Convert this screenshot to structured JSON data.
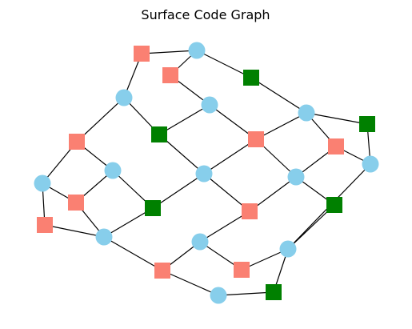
{
  "title": "Surface Code Graph",
  "colors": {
    "data_qubit": "#87ceeb",
    "x_stabilizer": "#fa8072",
    "z_stabilizer": "#008000",
    "edge": "#000000",
    "background": "#ffffff"
  },
  "node_types": {
    "data": "circle",
    "x": "square",
    "z": "square"
  },
  "nodes": {
    "d1": "data",
    "d2": "data",
    "d3": "data",
    "d4": "data",
    "d5": "data",
    "d6": "data",
    "d7": "data",
    "d8": "data",
    "d9": "data",
    "d10": "data",
    "d11": "data",
    "d12": "data",
    "d13": "data",
    "d14": "data",
    "x1": "x",
    "x2": "x",
    "x3": "x",
    "x4": "x",
    "x5": "x",
    "x6": "x",
    "x7": "x",
    "x8": "x",
    "x9": "x",
    "x10": "x",
    "z1": "z",
    "z2": "z",
    "z3": "z",
    "z4": "z",
    "z5": "z",
    "z6": "z"
  },
  "edges": [
    [
      "x1",
      "d1"
    ],
    [
      "x1",
      "d2"
    ],
    [
      "x2",
      "d1"
    ],
    [
      "x2",
      "d3"
    ],
    [
      "z1",
      "d1"
    ],
    [
      "z1",
      "d4"
    ],
    [
      "d2",
      "x3"
    ],
    [
      "d2",
      "z2"
    ],
    [
      "d3",
      "z2"
    ],
    [
      "d3",
      "x4"
    ],
    [
      "z2",
      "d6"
    ],
    [
      "x3",
      "d7"
    ],
    [
      "x3",
      "d5"
    ],
    [
      "d4",
      "x4"
    ],
    [
      "d4",
      "x5"
    ],
    [
      "d4",
      "z3"
    ],
    [
      "z3",
      "d10"
    ],
    [
      "x4",
      "d6"
    ],
    [
      "x4",
      "d8"
    ],
    [
      "x5",
      "d8"
    ],
    [
      "x5",
      "d10"
    ],
    [
      "d5",
      "x6"
    ],
    [
      "d5",
      "z4"
    ],
    [
      "x6",
      "d7"
    ],
    [
      "x6",
      "d9"
    ],
    [
      "x7",
      "d7"
    ],
    [
      "x7",
      "d9"
    ],
    [
      "d6",
      "z4"
    ],
    [
      "d6",
      "x8"
    ],
    [
      "z4",
      "d9"
    ],
    [
      "d8",
      "x8"
    ],
    [
      "d8",
      "z5"
    ],
    [
      "x8",
      "d11"
    ],
    [
      "z5",
      "d12"
    ],
    [
      "d10",
      "d12"
    ],
    [
      "d9",
      "x9"
    ],
    [
      "d11",
      "x9"
    ],
    [
      "d11",
      "x10"
    ],
    [
      "d12",
      "x10"
    ],
    [
      "d12",
      "z6"
    ],
    [
      "x9",
      "d14"
    ],
    [
      "d14",
      "z6"
    ]
  ]
}
